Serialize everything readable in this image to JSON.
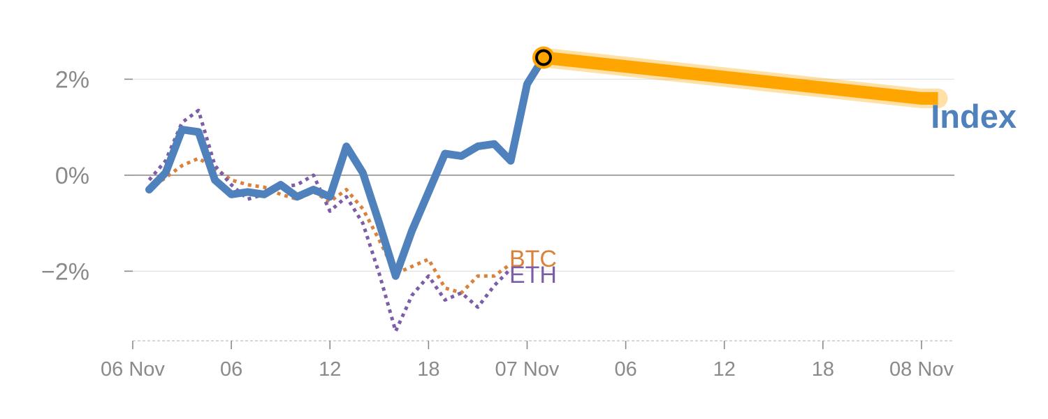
{
  "chart_data": {
    "type": "line",
    "title": "",
    "xlabel": "",
    "ylabel": "",
    "y_unit": "%",
    "ylim": [
      -3.45,
      2.85
    ],
    "y_ticks": [
      {
        "value": 2,
        "label": "2%"
      },
      {
        "value": 0,
        "label": "0%"
      },
      {
        "value": -2,
        "label": "−2%"
      }
    ],
    "x_range": [
      "2023-11-06T00:00",
      "2023-11-08T02:00"
    ],
    "x_ticks": [
      {
        "x": "2023-11-06T00:00",
        "label": "06 Nov"
      },
      {
        "x": "2023-11-06T06:00",
        "label": "06"
      },
      {
        "x": "2023-11-06T12:00",
        "label": "12"
      },
      {
        "x": "2023-11-06T18:00",
        "label": "18"
      },
      {
        "x": "2023-11-07T00:00",
        "label": "07 Nov"
      },
      {
        "x": "2023-11-07T06:00",
        "label": "06"
      },
      {
        "x": "2023-11-07T12:00",
        "label": "12"
      },
      {
        "x": "2023-11-07T18:00",
        "label": "18"
      },
      {
        "x": "2023-11-08T00:00",
        "label": "08 Nov"
      }
    ],
    "grid": "horizontal",
    "zero_line": true,
    "series": [
      {
        "name": "BTC",
        "color": "#d9823b",
        "style": "dotted",
        "points": [
          [
            "2023-11-06T01:00",
            -0.3
          ],
          [
            "2023-11-06T02:00",
            -0.05
          ],
          [
            "2023-11-06T03:00",
            0.2
          ],
          [
            "2023-11-06T04:00",
            0.35
          ],
          [
            "2023-11-06T05:00",
            0.15
          ],
          [
            "2023-11-06T06:00",
            -0.1
          ],
          [
            "2023-11-06T07:00",
            -0.2
          ],
          [
            "2023-11-06T08:00",
            -0.25
          ],
          [
            "2023-11-06T09:00",
            -0.4
          ],
          [
            "2023-11-06T10:00",
            -0.5
          ],
          [
            "2023-11-06T11:00",
            -0.35
          ],
          [
            "2023-11-06T12:00",
            -0.55
          ],
          [
            "2023-11-06T13:00",
            -0.3
          ],
          [
            "2023-11-06T14:00",
            -0.7
          ],
          [
            "2023-11-06T15:00",
            -1.35
          ],
          [
            "2023-11-06T16:00",
            -2.05
          ],
          [
            "2023-11-06T17:00",
            -1.9
          ],
          [
            "2023-11-06T18:00",
            -1.75
          ],
          [
            "2023-11-06T19:00",
            -2.35
          ],
          [
            "2023-11-06T20:00",
            -2.45
          ],
          [
            "2023-11-06T21:00",
            -2.1
          ],
          [
            "2023-11-06T22:00",
            -2.1
          ],
          [
            "2023-11-06T23:00",
            -1.85
          ]
        ]
      },
      {
        "name": "ETH",
        "color": "#7b5ea7",
        "style": "dotted",
        "points": [
          [
            "2023-11-06T01:00",
            -0.1
          ],
          [
            "2023-11-06T02:00",
            0.3
          ],
          [
            "2023-11-06T03:00",
            1.1
          ],
          [
            "2023-11-06T04:00",
            1.35
          ],
          [
            "2023-11-06T05:00",
            0.2
          ],
          [
            "2023-11-06T06:00",
            -0.2
          ],
          [
            "2023-11-06T07:00",
            -0.5
          ],
          [
            "2023-11-06T08:00",
            -0.4
          ],
          [
            "2023-11-06T09:00",
            -0.25
          ],
          [
            "2023-11-06T10:00",
            -0.2
          ],
          [
            "2023-11-06T11:00",
            0.0
          ],
          [
            "2023-11-06T12:00",
            -0.75
          ],
          [
            "2023-11-06T13:00",
            -0.45
          ],
          [
            "2023-11-06T14:00",
            -1.0
          ],
          [
            "2023-11-06T15:00",
            -2.05
          ],
          [
            "2023-11-06T16:00",
            -3.25
          ],
          [
            "2023-11-06T17:00",
            -2.5
          ],
          [
            "2023-11-06T18:00",
            -2.1
          ],
          [
            "2023-11-06T19:00",
            -2.6
          ],
          [
            "2023-11-06T20:00",
            -2.45
          ],
          [
            "2023-11-06T21:00",
            -2.75
          ],
          [
            "2023-11-06T22:00",
            -2.3
          ],
          [
            "2023-11-06T23:00",
            -1.95
          ]
        ]
      },
      {
        "name": "Index",
        "color": "#4f81bd",
        "style": "solid",
        "points": [
          [
            "2023-11-06T01:00",
            -0.3
          ],
          [
            "2023-11-06T02:00",
            0.05
          ],
          [
            "2023-11-06T03:00",
            0.95
          ],
          [
            "2023-11-06T04:00",
            0.9
          ],
          [
            "2023-11-06T05:00",
            -0.1
          ],
          [
            "2023-11-06T06:00",
            -0.4
          ],
          [
            "2023-11-06T07:00",
            -0.35
          ],
          [
            "2023-11-06T08:00",
            -0.4
          ],
          [
            "2023-11-06T09:00",
            -0.2
          ],
          [
            "2023-11-06T10:00",
            -0.45
          ],
          [
            "2023-11-06T11:00",
            -0.3
          ],
          [
            "2023-11-06T12:00",
            -0.45
          ],
          [
            "2023-11-06T13:00",
            0.6
          ],
          [
            "2023-11-06T14:00",
            0.05
          ],
          [
            "2023-11-06T15:00",
            -1.0
          ],
          [
            "2023-11-06T16:00",
            -2.1
          ],
          [
            "2023-11-06T17:00",
            -1.15
          ],
          [
            "2023-11-06T18:00",
            -0.35
          ],
          [
            "2023-11-06T19:00",
            0.45
          ],
          [
            "2023-11-06T20:00",
            0.4
          ],
          [
            "2023-11-06T21:00",
            0.6
          ],
          [
            "2023-11-06T22:00",
            0.65
          ],
          [
            "2023-11-06T23:00",
            0.3
          ],
          [
            "2023-11-07T00:00",
            1.9
          ],
          [
            "2023-11-07T01:00",
            2.45
          ]
        ]
      }
    ],
    "forecast": {
      "color": "#ffa500",
      "points": [
        [
          "2023-11-07T01:00",
          2.45
        ],
        [
          "2023-11-08T00:00",
          1.6
        ],
        [
          "2023-11-08T01:00",
          1.6
        ]
      ]
    },
    "marker": {
      "x": "2023-11-07T01:00",
      "y": 2.45,
      "color": "#ffa500"
    },
    "index_label": {
      "text": "Index",
      "color": "#4f81bd"
    }
  }
}
